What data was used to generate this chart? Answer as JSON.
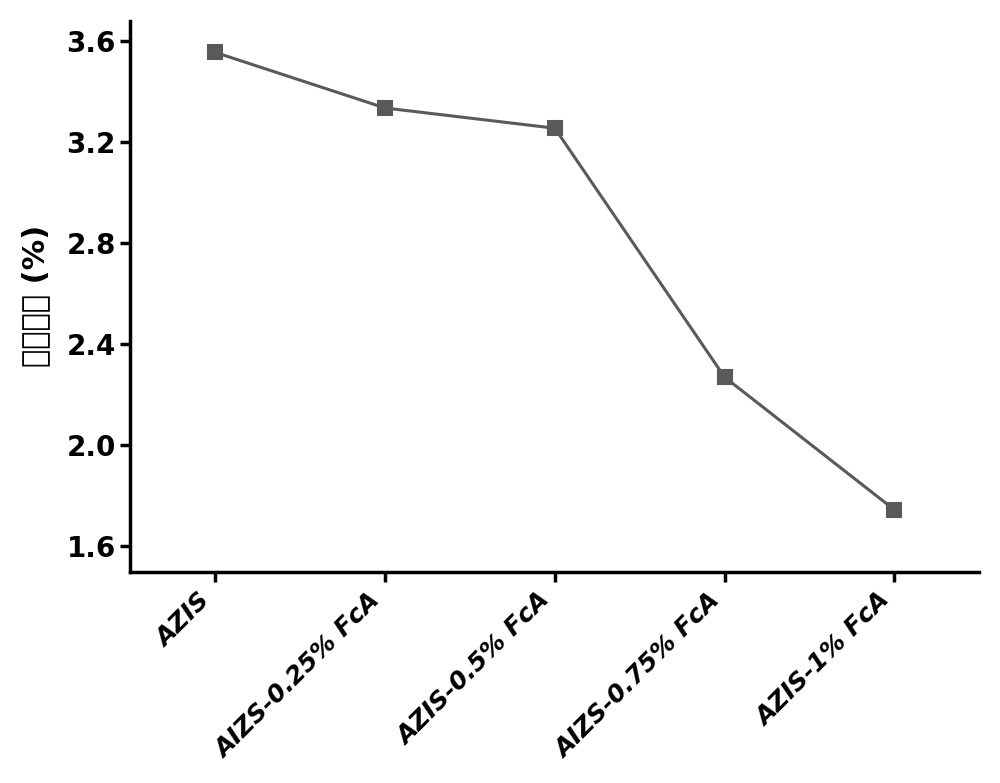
{
  "x_labels": [
    "AZIS",
    "AIZS-0.25% FcA",
    "AZIS-0.5% FcA",
    "AIZS-0.75% FcA",
    "AZIS-1% FcA"
  ],
  "y_values": [
    3.555,
    3.335,
    3.255,
    2.27,
    1.745
  ],
  "line_color": "#5a5a5a",
  "marker": "s",
  "marker_size": 10,
  "marker_color": "#5a5a5a",
  "linewidth": 2.2,
  "ylabel": "量子效率 (%)",
  "ylim": [
    1.5,
    3.68
  ],
  "yticks": [
    1.6,
    2.0,
    2.4,
    2.8,
    3.2,
    3.6
  ],
  "background_color": "#ffffff",
  "ylabel_fontsize": 22,
  "tick_fontsize": 20,
  "xtick_fontsize": 18,
  "spine_linewidth": 2.5
}
